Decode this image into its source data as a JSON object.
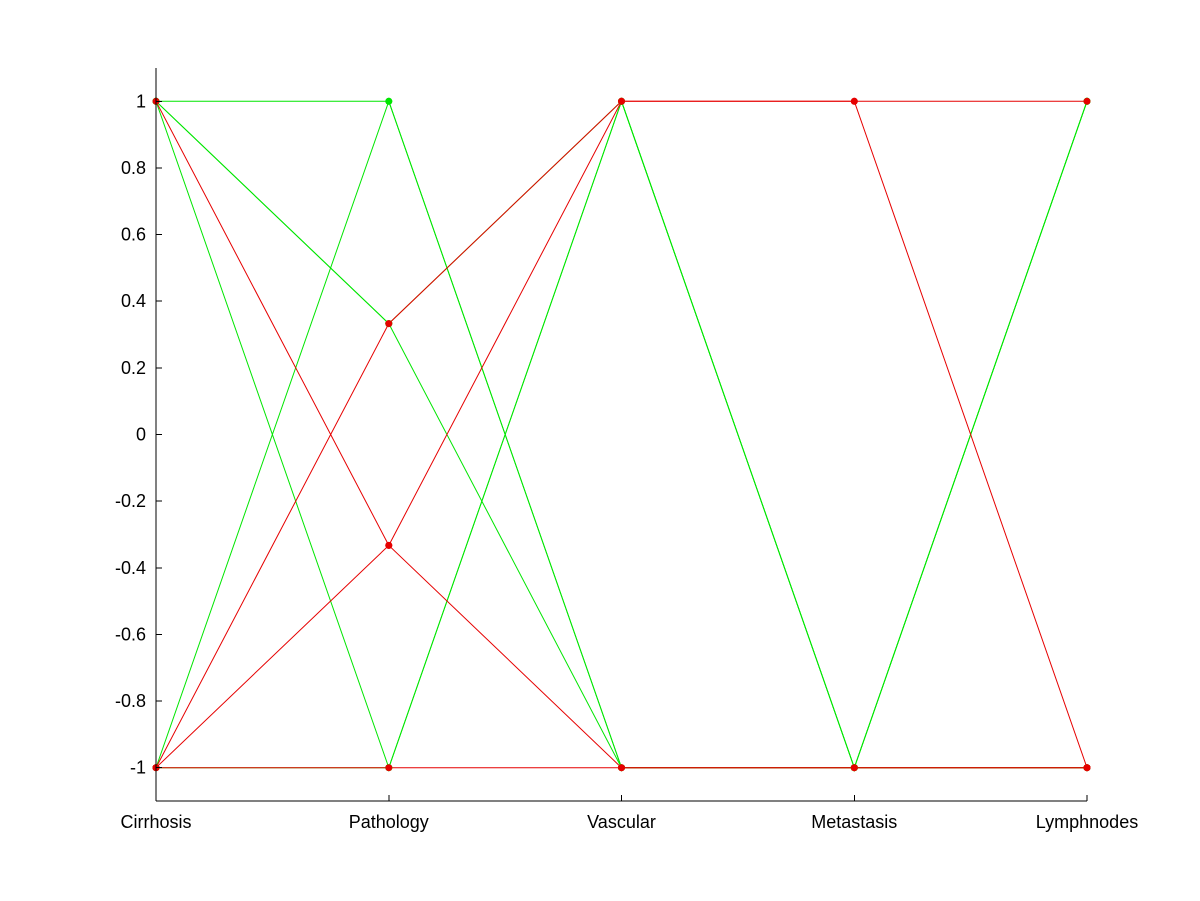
{
  "chart_data": {
    "type": "line",
    "subtype": "parallel-coordinates",
    "title": "",
    "xlabel": "",
    "ylabel": "",
    "categories": [
      "Cirrhosis",
      "Pathology",
      "Vascular",
      "Metastasis",
      "Lymphnodes"
    ],
    "ylim": [
      -1.1,
      1.1
    ],
    "yticks": [
      "1",
      "0.8",
      "0.6",
      "0.4",
      "0.2",
      "0",
      "-0.2",
      "-0.4",
      "-0.6",
      "-0.8",
      "-1"
    ],
    "ytick_values": [
      1,
      0.8,
      0.6,
      0.4,
      0.2,
      0,
      -0.2,
      -0.4,
      -0.6,
      -0.8,
      -1
    ],
    "grid": false,
    "legend": "none",
    "colors": {
      "class_a": "#00e600",
      "class_b": "#e60000",
      "axis": "#000000"
    },
    "series": [
      {
        "class": "class_a",
        "values": [
          1,
          1,
          -1,
          -1,
          -1
        ]
      },
      {
        "class": "class_a",
        "values": [
          1,
          0.333,
          1,
          -1,
          1
        ]
      },
      {
        "class": "class_a",
        "values": [
          1,
          0.333,
          -1,
          -1,
          -1
        ]
      },
      {
        "class": "class_a",
        "values": [
          1,
          -1,
          1,
          -1,
          1
        ]
      },
      {
        "class": "class_a",
        "values": [
          -1,
          1,
          -1,
          -1,
          -1
        ]
      },
      {
        "class": "class_a",
        "values": [
          -1,
          -1,
          1,
          -1,
          1
        ]
      },
      {
        "class": "class_b",
        "values": [
          1,
          -0.333,
          1,
          1,
          1
        ]
      },
      {
        "class": "class_b",
        "values": [
          -1,
          0.333,
          1,
          1,
          -1
        ]
      },
      {
        "class": "class_b",
        "values": [
          -1,
          -0.333,
          -1,
          -1,
          -1
        ]
      },
      {
        "class": "class_b",
        "values": [
          -1,
          -1,
          -1,
          -1,
          -1
        ]
      }
    ]
  }
}
